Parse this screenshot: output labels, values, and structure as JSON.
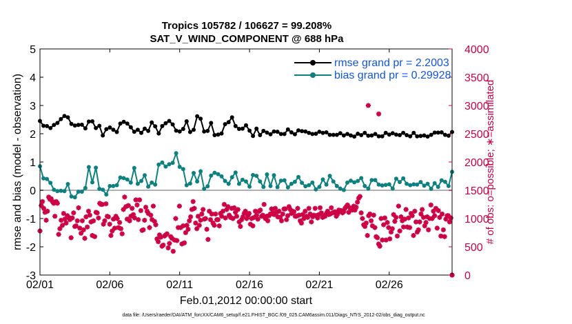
{
  "chart_data": {
    "type": "line",
    "title": "Tropics 105782 / 106627 = 99.208%",
    "subtitle": "SAT_V_WIND_COMPONENT @ 688 hPa",
    "xlabel": "Feb.01,2012 00:00:00 start",
    "ylabel": "rmse and bias (model - observation)",
    "y2label": "# of obs: o=possible; ∗=assimilated",
    "footer": "data file: /Users/raeder/DAI/ATM_forcXX/CAM6_setup/f.e21.FHIST_BGC.f09_025.CAM6assim.011/Diags_NTrS_2012-02/obs_diag_output.nc",
    "xlim": [
      0,
      29.5
    ],
    "ylim": [
      -3,
      5
    ],
    "y2lim": [
      0,
      4000
    ],
    "x_ticks": [
      0,
      5,
      10,
      15,
      20,
      25
    ],
    "x_tick_labels": [
      "02/01",
      "02/06",
      "02/11",
      "02/16",
      "02/21",
      "02/26"
    ],
    "y_ticks": [
      -3,
      -2,
      -1,
      0,
      1,
      2,
      3,
      4,
      5
    ],
    "y2_ticks": [
      0,
      500,
      1000,
      1500,
      2000,
      2500,
      3000,
      3500,
      4000
    ],
    "zero_line": 0,
    "x_step_days": 0.25,
    "colors": {
      "rmse": "#000000",
      "bias": "#0e8080",
      "obs": "#cc0044",
      "legend_text": "#1155dd",
      "zero_line": "#b0b0b0"
    },
    "series": [
      {
        "name": "rmse grand pr = 2.2003",
        "axis": "left",
        "marker": "circle",
        "values": [
          2.45,
          2.22,
          2.28,
          2.25,
          2.27,
          2.22,
          2.2,
          2.28,
          2.15,
          2.31,
          2.22,
          2.38,
          2.45,
          2.52,
          2.58,
          2.63,
          2.62,
          2.58,
          2.42,
          2.35,
          2.38,
          2.29,
          2.37,
          2.31,
          2.24,
          2.41,
          2.32,
          2.18,
          2.19,
          2.22,
          2.43,
          2.36,
          2.44,
          2.3,
          2.2,
          2.18,
          2.28,
          2.08,
          1.94,
          2.06,
          2.2,
          2.16,
          2.29,
          2.22,
          2.17,
          2.14,
          2.31,
          2.06,
          2.12,
          2.36,
          2.3,
          2.42,
          2.16,
          2.36,
          2.19,
          2.05,
          2.23,
          2.12,
          2.07,
          2.03,
          2.14,
          2.03,
          2.03,
          2.02,
          2.18,
          1.97,
          2.1,
          2.18,
          2.4,
          2.19,
          2.26,
          2.02,
          2.4,
          2.01,
          2.13,
          2.27,
          2.2,
          2.37,
          2.18,
          2.45,
          2.18,
          2.33,
          2.54,
          2.11,
          2.17,
          2.08,
          2.13,
          2.21,
          2.17,
          2.3,
          2.44,
          2.12,
          2.06,
          2.35,
          2.14,
          2.32,
          2.62,
          2.31,
          2.53,
          2.18,
          2.08,
          2.0,
          2.11,
          2.1,
          2.15,
          2.38,
          2.12,
          1.95,
          1.92,
          1.97,
          2.03,
          2.01,
          2.2,
          2.34,
          2.62,
          2.41,
          2.35,
          2.58,
          2.42,
          2.24,
          2.27,
          2.35,
          2.17,
          2.08,
          2.18,
          2.15,
          2.3,
          2.21,
          2.11,
          2.1,
          1.92,
          1.99,
          2.18,
          2.32,
          2.19,
          1.95,
          2.26,
          2.1,
          2.08,
          2.04,
          2.07,
          1.98,
          1.97,
          2.08,
          2.02,
          2.07,
          2.02,
          1.99,
          2.05,
          1.99,
          1.95,
          2.02,
          2.15,
          2.09,
          2.05,
          2.0,
          1.98,
          1.94,
          2.12,
          2.07,
          2.09,
          2.0,
          2.08,
          2.05,
          2.03,
          2.04,
          2.0,
          1.99,
          1.96,
          2.0,
          2.02,
          2.07,
          2.01,
          2.03,
          2.1,
          2.05,
          1.94,
          1.96,
          2.08,
          1.96,
          1.92,
          2.04,
          1.96,
          1.95,
          2.02,
          1.91,
          1.94,
          1.92,
          1.99,
          2.01,
          1.94,
          1.97,
          1.9,
          1.92,
          2.0,
          2.02,
          1.95,
          1.93,
          1.99,
          2.03,
          1.96,
          1.93,
          1.98,
          1.94,
          1.95,
          1.99,
          1.94,
          1.91,
          2.03,
          1.91,
          2.06,
          2.03,
          2.04,
          1.95,
          1.97,
          2.07,
          2.02,
          1.96,
          1.97,
          2.06,
          1.95,
          1.98,
          2.03,
          1.96,
          1.95,
          2.0,
          1.91,
          1.96,
          2.04,
          2.03,
          1.99,
          1.91,
          1.9,
          1.92,
          2.05,
          1.94,
          1.91,
          1.9,
          1.96,
          1.96,
          2.03,
          2.04,
          1.94,
          2.04,
          1.95,
          1.95,
          2.05,
          1.94,
          1.96,
          1.91,
          1.93,
          2.04,
          2.06
        ]
      },
      {
        "name": "bias grand pr = 0.29928",
        "axis": "left",
        "marker": "circle",
        "values": [
          0.85,
          0.55,
          0.42,
          0.22,
          0.52,
          0.4,
          0.41,
          0.26,
          -0.1,
          0.02,
          0.0,
          -0.03,
          0.05,
          0.1,
          -0.02,
          0.0,
          -0.03,
          -0.02,
          0.22,
          -0.1,
          -0.22,
          0.05,
          0.0,
          -0.25,
          -0.4,
          -0.05,
          0.02,
          -0.05,
          0.02,
          0.4,
          0.08,
          0.15,
          0.82,
          0.45,
          0.28,
          0.22,
          0.8,
          0.4,
          0.18,
          0.05,
          0.35,
          0.02,
          -0.12,
          -0.15,
          -0.22,
          0.15,
          0.46,
          0.25,
          0.15,
          0.34,
          0.18,
          0.03,
          0.45,
          0.83,
          0.6,
          0.43,
          0.74,
          0.38,
          0.5,
          0.27,
          0.2,
          0.79,
          0.22,
          0.02,
          0.23,
          0.47,
          0.33,
          0.15,
          0.53,
          0.09,
          0.13,
          0.02,
          0.19,
          0.27,
          0.47,
          0.2,
          0.87,
          0.91,
          0.68,
          0.98,
          0.74,
          0.73,
          0.84,
          1.08,
          0.92,
          0.82,
          0.97,
          0.4,
          0.75,
          1.31,
          1.18,
          0.83,
          0.59,
          0.75,
          0.81,
          0.18,
          1.27,
          0.31,
          0.24,
          0.85,
          0.61,
          0.23,
          0.31,
          1.29,
          0.67,
          0.39,
          0.22,
          0.05,
          0.52,
          0.14,
          0.26,
          0.52,
          0.31,
          0.43,
          0.62,
          0.2,
          0.57,
          0.26,
          0.49,
          0.11,
          0.33,
          0.48,
          0.43,
          0.23,
          0.49,
          0.46,
          0.5,
          0.63,
          0.47,
          0.23,
          0.29,
          0.37,
          0.37,
          0.38,
          0.31,
          0.08,
          0.13,
          0.46,
          0.54,
          0.54,
          0.44,
          0.51,
          0.41,
          0.31,
          0.46,
          0.12,
          0.47,
          0.39,
          0.56,
          0.14,
          0.15,
          0.28,
          0.53,
          0.1,
          0.11,
          0.17,
          0.46,
          0.34,
          0.22,
          0.35,
          0.09,
          0.1,
          0.21,
          0.4,
          0.23,
          0.55,
          0.3,
          0.1,
          0.47,
          0.42,
          0.26,
          0.25,
          0.12,
          0.14,
          0.05,
          0.18,
          0.25,
          0.27,
          0.12,
          0.03,
          0.49,
          0.02,
          0.12,
          0.24,
          0.38,
          0.26,
          0.2,
          0.5,
          0.19,
          0.51,
          0.44,
          0.31,
          0.26,
          0.15,
          0.37,
          0.06,
          0.48,
          0.3,
          0.01,
          0.4,
          0.27,
          0.12,
          0.34,
          0.3,
          0.28,
          0.53,
          0.49,
          0.33,
          0.08,
          0.43,
          0.16,
          0.15,
          0.37,
          0.06,
          0.06,
          0.42,
          0.36,
          0.07,
          0.36,
          0.33,
          0.2,
          0.06,
          0.41,
          0.17,
          0.12,
          0.19,
          0.2,
          0.21,
          0.46,
          0.06,
          0.22,
          0.22,
          0.41,
          0.23,
          0.29,
          0.36,
          0.42,
          0.26,
          0.23,
          0.28,
          0.45,
          0.18,
          0.4,
          0.21,
          0.13,
          0.2,
          0.09,
          0.44,
          0.29,
          0.23,
          0.16,
          0.17,
          0.23,
          -0.15,
          0.05,
          0.12,
          0.14,
          0.25,
          0.0,
          0.12,
          -0.2,
          0.35,
          -0.05,
          0.3,
          -0.22,
          -0.15,
          0.15,
          0.35,
          0.65
        ]
      },
      {
        "name": "# of obs assimilated",
        "axis": "right",
        "marker": "star",
        "values": [
          780,
          1230,
          1300,
          1180,
          1110,
          970,
          1130,
          1380,
          1340,
          1350,
          1300,
          1270,
          1040,
          1300,
          1270,
          720,
          820,
          970,
          880,
          1090,
          990,
          920,
          1050,
          1020,
          980,
          660,
          1010,
          1100,
          860,
          870,
          960,
          1190,
          830,
          740,
          960,
          800,
          650,
          1030,
          850,
          1130,
          1060,
          940,
          700,
          960,
          680,
          1110,
          1100,
          1010,
          1270,
          1250,
          1250,
          900,
          960,
          1260,
          1040,
          1030,
          900,
          700,
          780,
          990,
          830,
          1040,
          1000,
          840,
          930,
          820,
          730,
          1160,
          1380,
          1210,
          990,
          1230,
          960,
          1040,
          1180,
          1070,
          1010,
          1330,
          1240,
          980,
          1330,
          1140,
          790,
          800,
          970,
          1200,
          1130,
          1090,
          840,
          1060,
          980,
          1220,
          950,
          890,
          640,
          590,
          710,
          670,
          510,
          530,
          690,
          710,
          730,
          480,
          560,
          680,
          650,
          420,
          620,
          1000,
          610,
          840,
          1220,
          840,
          550,
          870,
          570,
          750,
          880,
          810,
          960,
          1030,
          1160,
          1300,
          1180,
          920,
          820,
          1040,
          880,
          970,
          1080,
          1160,
          990,
          1000,
          810,
          630,
          1130,
          980,
          1080,
          920,
          880,
          1080,
          980,
          980,
          870,
          1090,
          1040,
          1130,
          1250,
          1010,
          1160,
          1210,
          1060,
          1020,
          1180,
          1000,
          1190,
          1110,
          1040,
          1160,
          940,
          860,
          980,
          1030,
          1090,
          1130,
          1000,
          1050,
          1090,
          900,
          1000,
          870,
          1020,
          1130,
          1060,
          990,
          1130,
          1150,
          1040,
          1060,
          1250,
          1000,
          1040,
          960,
          1050,
          1080,
          1170,
          1110,
          1070,
          1180,
          1110,
          1030,
          1130,
          1020,
          960,
          1080,
          1170,
          1170,
          980,
          1050,
          1210,
          1160,
          1090,
          1130,
          1120,
          1040,
          1040,
          1180,
          1060,
          960,
          920,
          1070,
          1000,
          1130,
          1040,
          1020,
          1180,
          1080,
          940,
          1030,
          1060,
          1180,
          1050,
          1010,
          1070,
          1190,
          1100,
          1020,
          1040,
          1040,
          1090,
          1130,
          1070,
          1080,
          1190,
          1100,
          1110,
          1120,
          1040,
          1080,
          1150,
          1130,
          1140,
          1100,
          1120,
          1180,
          1210,
          1240,
          1110,
          1190,
          1170,
          1150,
          1220,
          1150,
          1200,
          1290,
          1360,
          1390,
          1100,
          1000,
          890,
          860,
          920,
          700,
          1050,
          1080,
          960,
          870,
          1060,
          840,
          680,
          660,
          550,
          510,
          1000,
          620,
          890,
          1010,
          620,
          930,
          840,
          640,
          760,
          820,
          1070,
          950,
          1020,
          690,
          1220,
          780,
          1030,
          960,
          850,
          990,
          1160,
          850,
          1010,
          840,
          1090,
          1050,
          700,
          1130,
          940,
          760,
          800,
          940,
          1080,
          1160,
          1020,
          870,
          930,
          1030,
          800,
          1000,
          1240,
          1000,
          1130,
          1050,
          1180,
          830,
          1140,
          1020,
          690,
          1080,
          800,
          680,
          990,
          1050,
          1050,
          940,
          1010,
          0
        ]
      }
    ],
    "obs_extra": [
      {
        "x": 23.5,
        "value": 3000
      },
      {
        "x": 24.25,
        "value": 2850
      }
    ]
  }
}
